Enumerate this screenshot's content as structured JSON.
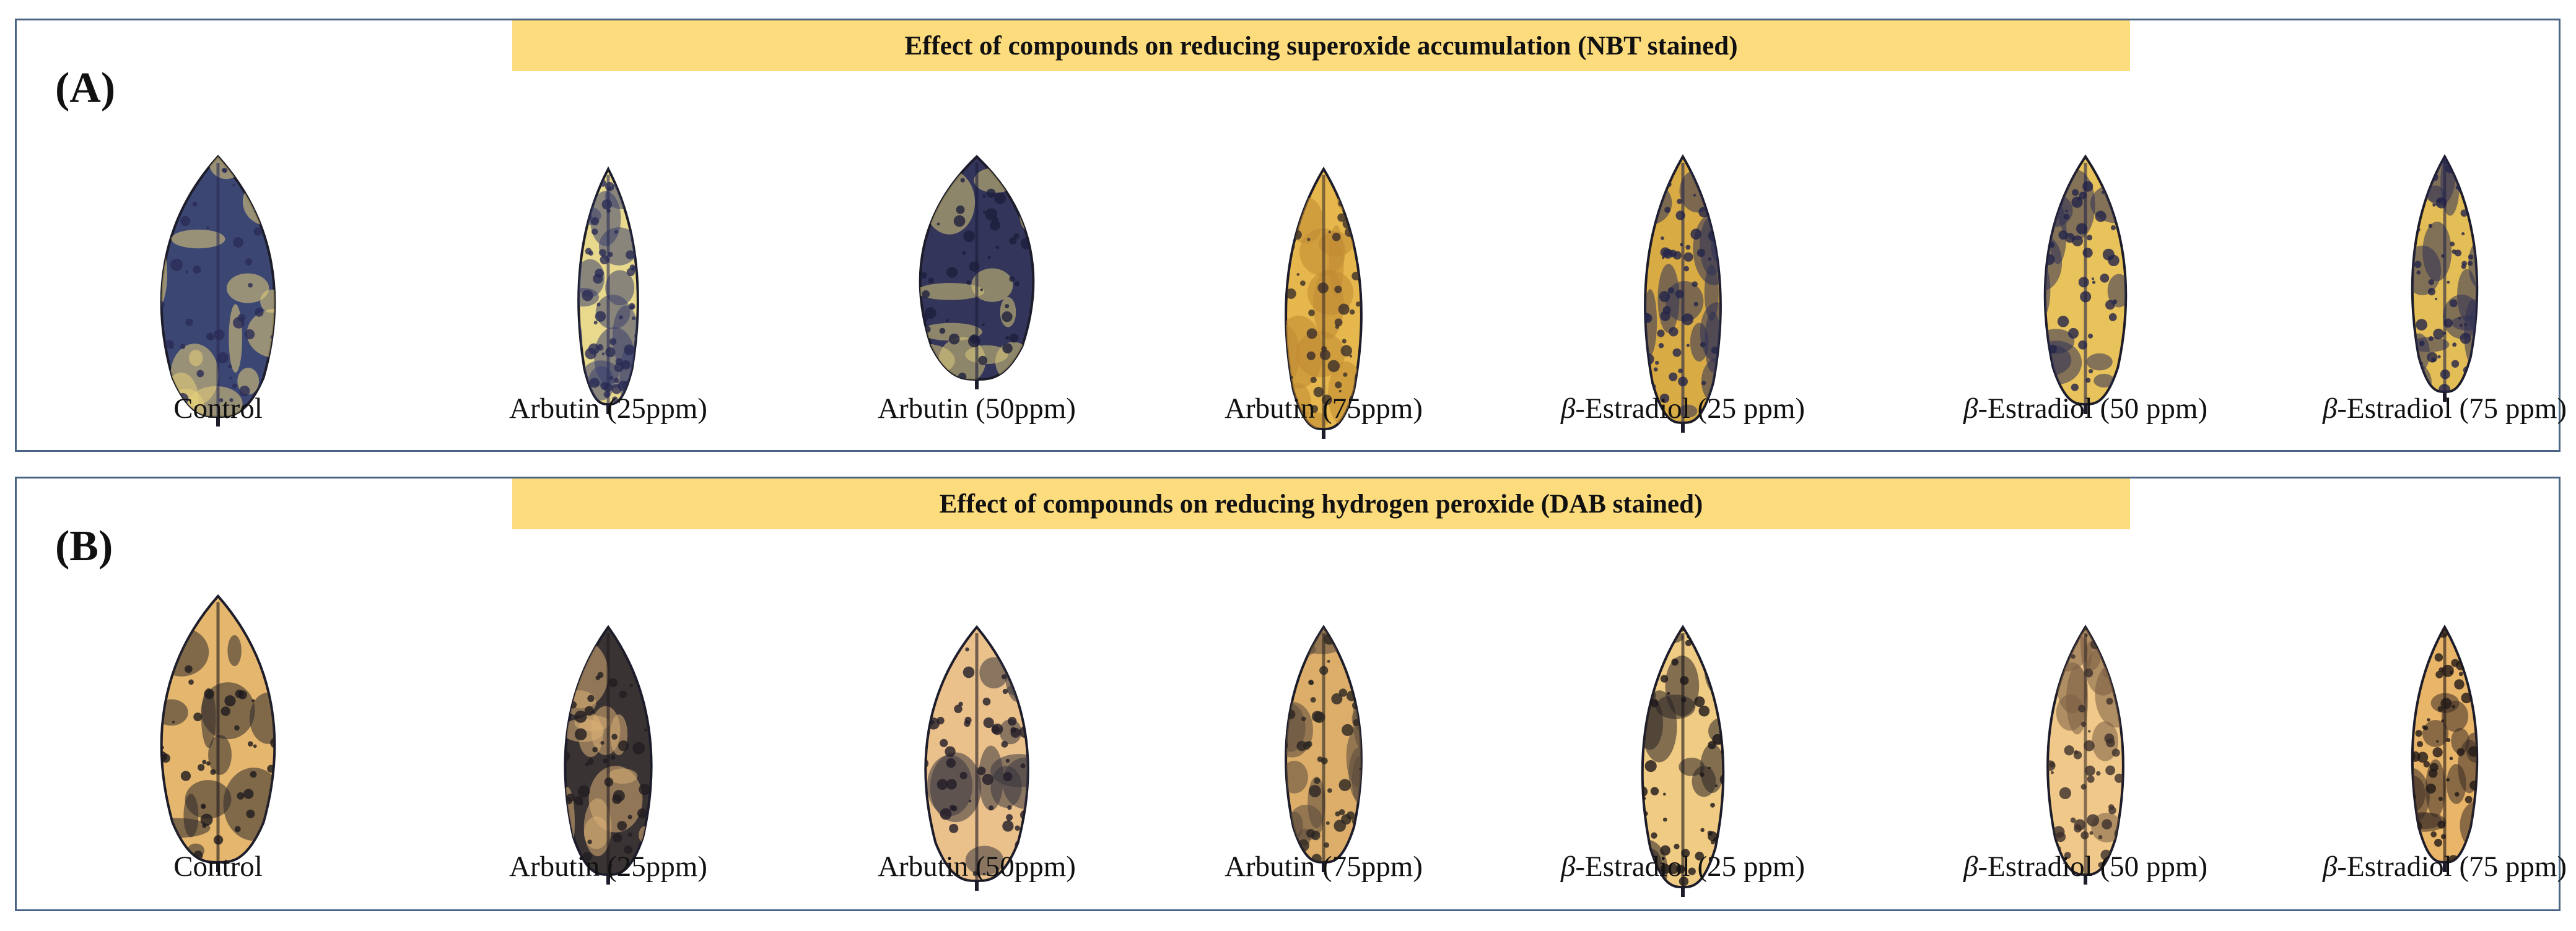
{
  "panels": [
    {
      "label": "(A)",
      "title": "Effect of compounds on reducing superoxide accumulation (NBT stained)",
      "stain": "NBT",
      "leaves": [
        {
          "caption_prefix": "",
          "caption": "Control",
          "base": "#3c4673",
          "patch": "#e6d07a",
          "spot": "#2a2c55"
        },
        {
          "caption_prefix": "",
          "caption": "Arbutin (25ppm)",
          "base": "#e8d98c",
          "patch": "#3a3f6e",
          "spot": "#2a2c55"
        },
        {
          "caption_prefix": "",
          "caption": "Arbutin (50ppm)",
          "base": "#33355a",
          "patch": "#d9c97a",
          "spot": "#1e1f3c"
        },
        {
          "caption_prefix": "",
          "caption": "Arbutin (75ppm)",
          "base": "#e6b74c",
          "patch": "#c08a33",
          "spot": "#3a2e2a"
        },
        {
          "caption_prefix": "β",
          "caption": "-Estradiol (25 ppm)",
          "base": "#d8ab45",
          "patch": "#2f3156",
          "spot": "#23244a"
        },
        {
          "caption_prefix": "β",
          "caption": "-Estradiol (50 ppm)",
          "base": "#e8c25a",
          "patch": "#2f3156",
          "spot": "#23244a"
        },
        {
          "caption_prefix": "β",
          "caption": "-Estradiol (75 ppm)",
          "base": "#e3bd55",
          "patch": "#2f3156",
          "spot": "#23244a"
        }
      ]
    },
    {
      "label": "(B)",
      "title": "Effect of compounds on reducing hydrogen peroxide (DAB stained)",
      "stain": "DAB",
      "leaves": [
        {
          "caption_prefix": "",
          "caption": "Control",
          "base": "#e4b66e",
          "patch": "#2e2a2c",
          "spot": "#1e1a1e"
        },
        {
          "caption_prefix": "",
          "caption": "Arbutin (25ppm)",
          "base": "#3a3334",
          "patch": "#d9ae74",
          "spot": "#221d20"
        },
        {
          "caption_prefix": "",
          "caption": "Arbutin (50ppm)",
          "base": "#eac08b",
          "patch": "#3a3640",
          "spot": "#221d28"
        },
        {
          "caption_prefix": "",
          "caption": "Arbutin (75ppm)",
          "base": "#dcae6a",
          "patch": "#5a4a3c",
          "spot": "#2a2622"
        },
        {
          "caption_prefix": "β",
          "caption": "-Estradiol (25 ppm)",
          "base": "#f0cb83",
          "patch": "#2a2426",
          "spot": "#1c1719"
        },
        {
          "caption_prefix": "β",
          "caption": "-Estradiol (50 ppm)",
          "base": "#f0c98a",
          "patch": "#7a5d44",
          "spot": "#3c2f2a"
        },
        {
          "caption_prefix": "β",
          "caption": "-Estradiol (75 ppm)",
          "base": "#e9b568",
          "patch": "#3a2c26",
          "spot": "#221a18"
        }
      ]
    }
  ]
}
